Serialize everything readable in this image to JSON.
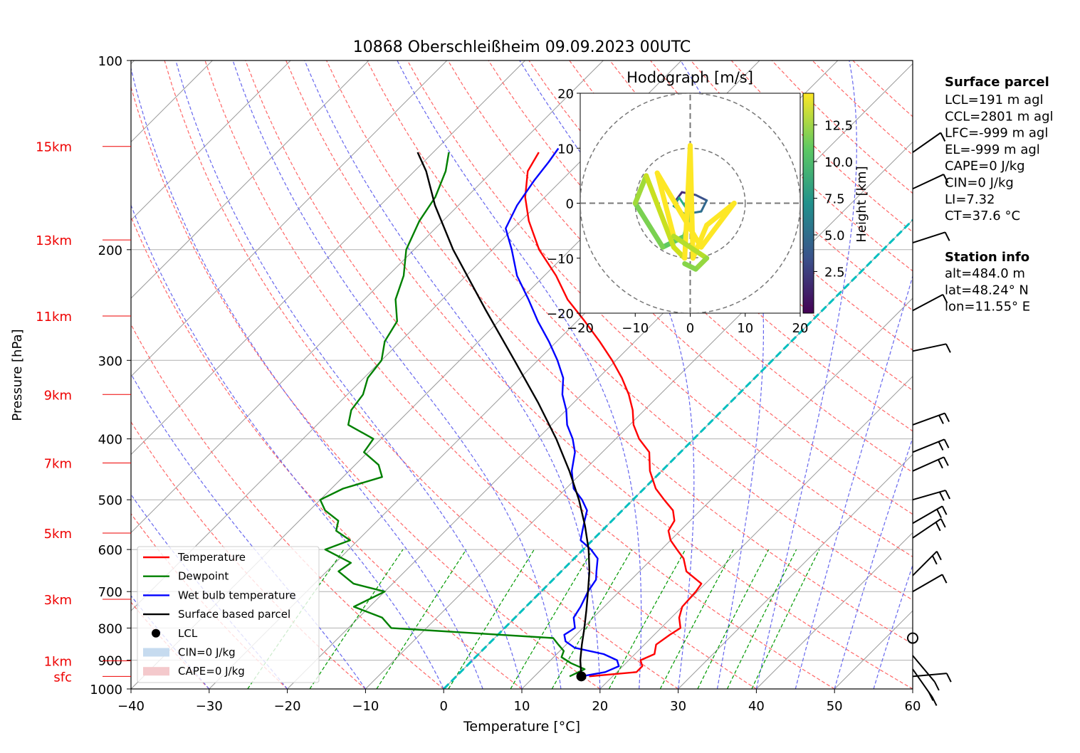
{
  "chart_data": {
    "type": "line",
    "title": "10868 Oberschleißheim 09.09.2023 00UTC",
    "xlabel": "Temperature [°C]",
    "ylabel": "Pressure [hPa]",
    "xlim": [
      -40,
      60
    ],
    "ylim": [
      1000,
      100
    ],
    "yscale": "log",
    "x_ticks": [
      "−40",
      "−30",
      "−20",
      "−10",
      "0",
      "10",
      "20",
      "30",
      "40",
      "50",
      "60"
    ],
    "p_ticks": [
      {
        "p": 100,
        "label": "100"
      },
      {
        "p": 200,
        "label": "200"
      },
      {
        "p": 300,
        "label": "300"
      },
      {
        "p": 400,
        "label": "400"
      },
      {
        "p": 500,
        "label": "500"
      },
      {
        "p": 600,
        "label": "600"
      },
      {
        "p": 700,
        "label": "700"
      },
      {
        "p": 800,
        "label": "800"
      },
      {
        "p": 900,
        "label": "900"
      },
      {
        "p": 1000,
        "label": "1000"
      }
    ],
    "height_labels": [
      {
        "p": 955,
        "label": "sfc"
      },
      {
        "p": 902,
        "label": "1km"
      },
      {
        "p": 720,
        "label": "3km"
      },
      {
        "p": 565,
        "label": "5km"
      },
      {
        "p": 437,
        "label": "7km"
      },
      {
        "p": 340,
        "label": "9km"
      },
      {
        "p": 255,
        "label": "11km"
      },
      {
        "p": 193,
        "label": "13km"
      },
      {
        "p": 137,
        "label": "15km"
      }
    ],
    "series": [
      {
        "name": "Temperature",
        "color": "#ff0000",
        "points": [
          [
            955,
            17.0
          ],
          [
            940,
            22.5
          ],
          [
            920,
            22.5
          ],
          [
            900,
            21.5
          ],
          [
            880,
            22.5
          ],
          [
            850,
            21.5
          ],
          [
            820,
            22.0
          ],
          [
            800,
            22.5
          ],
          [
            770,
            21.0
          ],
          [
            740,
            20.0
          ],
          [
            700,
            19.8
          ],
          [
            680,
            19.5
          ],
          [
            650,
            16.0
          ],
          [
            620,
            14.0
          ],
          [
            600,
            12.0
          ],
          [
            580,
            10.0
          ],
          [
            560,
            8.5
          ],
          [
            540,
            8.0
          ],
          [
            520,
            6.5
          ],
          [
            500,
            4.0
          ],
          [
            480,
            1.5
          ],
          [
            450,
            -1.5
          ],
          [
            420,
            -4.0
          ],
          [
            400,
            -7.0
          ],
          [
            380,
            -9.5
          ],
          [
            360,
            -11.5
          ],
          [
            340,
            -14.0
          ],
          [
            320,
            -17.0
          ],
          [
            300,
            -20.5
          ],
          [
            280,
            -24.5
          ],
          [
            260,
            -29.0
          ],
          [
            240,
            -34.0
          ],
          [
            220,
            -38.5
          ],
          [
            200,
            -44.0
          ],
          [
            180,
            -49.0
          ],
          [
            165,
            -52.5
          ],
          [
            150,
            -55.5
          ],
          [
            140,
            -56.5
          ]
        ]
      },
      {
        "name": "Dewpoint",
        "color": "#008000",
        "points": [
          [
            955,
            14.5
          ],
          [
            930,
            15.5
          ],
          [
            910,
            13.0
          ],
          [
            890,
            11.0
          ],
          [
            870,
            10.5
          ],
          [
            850,
            9.0
          ],
          [
            830,
            7.5
          ],
          [
            800,
            -14.5
          ],
          [
            770,
            -17.0
          ],
          [
            740,
            -22.0
          ],
          [
            700,
            -20.0
          ],
          [
            680,
            -25.0
          ],
          [
            650,
            -28.5
          ],
          [
            630,
            -28.0
          ],
          [
            600,
            -33.0
          ],
          [
            580,
            -31.0
          ],
          [
            560,
            -34.0
          ],
          [
            540,
            -35.0
          ],
          [
            520,
            -38.0
          ],
          [
            500,
            -40.0
          ],
          [
            480,
            -38.5
          ],
          [
            460,
            -35.0
          ],
          [
            440,
            -37.0
          ],
          [
            420,
            -40.5
          ],
          [
            400,
            -41.0
          ],
          [
            380,
            -46.0
          ],
          [
            360,
            -47.5
          ],
          [
            340,
            -48.0
          ],
          [
            320,
            -49.5
          ],
          [
            300,
            -50.0
          ],
          [
            280,
            -52.0
          ],
          [
            260,
            -53.0
          ],
          [
            240,
            -56.0
          ],
          [
            220,
            -58.0
          ],
          [
            200,
            -61.0
          ],
          [
            180,
            -63.0
          ],
          [
            165,
            -64.0
          ],
          [
            150,
            -66.0
          ],
          [
            140,
            -68.0
          ]
        ]
      },
      {
        "name": "Wet bulb temperature",
        "color": "#0000ff",
        "points": [
          [
            955,
            16.0
          ],
          [
            940,
            18.5
          ],
          [
            920,
            19.5
          ],
          [
            900,
            18.5
          ],
          [
            880,
            16.0
          ],
          [
            860,
            11.5
          ],
          [
            840,
            9.5
          ],
          [
            820,
            8.5
          ],
          [
            800,
            9.0
          ],
          [
            770,
            7.5
          ],
          [
            740,
            7.0
          ],
          [
            700,
            6.0
          ],
          [
            670,
            5.5
          ],
          [
            650,
            4.5
          ],
          [
            620,
            3.0
          ],
          [
            600,
            1.0
          ],
          [
            580,
            -1.5
          ],
          [
            560,
            -2.5
          ],
          [
            540,
            -3.5
          ],
          [
            520,
            -4.5
          ],
          [
            500,
            -6.5
          ],
          [
            480,
            -9.0
          ],
          [
            450,
            -11.5
          ],
          [
            420,
            -13.5
          ],
          [
            400,
            -15.5
          ],
          [
            380,
            -18.0
          ],
          [
            360,
            -20.0
          ],
          [
            340,
            -22.5
          ],
          [
            320,
            -24.5
          ],
          [
            300,
            -27.5
          ],
          [
            280,
            -31.0
          ],
          [
            260,
            -35.0
          ],
          [
            240,
            -39.0
          ],
          [
            220,
            -43.5
          ],
          [
            200,
            -47.5
          ],
          [
            185,
            -51.0
          ],
          [
            170,
            -52.5
          ],
          [
            155,
            -53.5
          ],
          [
            145,
            -54.0
          ],
          [
            138,
            -54.5
          ]
        ]
      },
      {
        "name": "Surface based parcel",
        "color": "#000000",
        "points": [
          [
            955,
            16.0
          ],
          [
            900,
            13.8
          ],
          [
            850,
            12.0
          ],
          [
            800,
            10.2
          ],
          [
            750,
            8.2
          ],
          [
            700,
            6.0
          ],
          [
            650,
            3.6
          ],
          [
            600,
            0.7
          ],
          [
            550,
            -2.8
          ],
          [
            500,
            -6.9
          ],
          [
            450,
            -11.8
          ],
          [
            400,
            -17.6
          ],
          [
            350,
            -24.6
          ],
          [
            300,
            -33.0
          ],
          [
            250,
            -43.0
          ],
          [
            200,
            -55.0
          ],
          [
            170,
            -63.0
          ],
          [
            150,
            -68.5
          ],
          [
            140,
            -72.0
          ]
        ]
      }
    ],
    "lcl": {
      "p": 955,
      "t": 16.0
    },
    "legend": {
      "placement": "lower-left",
      "entries": [
        {
          "label": "Temperature",
          "kind": "line",
          "color": "#ff0000"
        },
        {
          "label": "Dewpoint",
          "kind": "line",
          "color": "#008000"
        },
        {
          "label": "Wet bulb temperature",
          "kind": "line",
          "color": "#0000ff"
        },
        {
          "label": "Surface based parcel",
          "kind": "line",
          "color": "#000000"
        },
        {
          "label": "LCL",
          "kind": "dot",
          "color": "#000000"
        },
        {
          "label": "CIN=0 J/kg",
          "kind": "patch",
          "color": "#c6dbef"
        },
        {
          "label": "CAPE=0 J/kg",
          "kind": "patch",
          "color": "#f4c9cc"
        }
      ]
    },
    "hodograph": {
      "title": "Hodograph [m/s]",
      "xlim": [
        -20,
        20
      ],
      "ylim": [
        -20,
        20
      ],
      "x_ticks": [
        "−20",
        "−10",
        "0",
        "10",
        "20"
      ],
      "y_ticks": [
        "20",
        "10",
        "0",
        "−10",
        "−20"
      ],
      "colorbar_label": "Height [km]",
      "colorbar_ticks": [
        "2.5",
        "5.0",
        "7.5",
        "10.0",
        "12.5"
      ],
      "colormap": [
        "#440154",
        "#3b528b",
        "#21918c",
        "#5ec962",
        "#fde725"
      ]
    },
    "surface_parcel": {
      "title": "Surface parcel",
      "lines": [
        "LCL=191 m agl",
        "CCL=2801 m agl",
        "LFC=-999 m agl",
        "EL=-999 m agl",
        "CAPE=0 J/kg",
        "CIN=0 J/kg",
        "LI=7.32",
        "CT=37.6 °C"
      ]
    },
    "station_info": {
      "title": "Station info",
      "lines": [
        "alt=484.0 m",
        "lat=48.24° N",
        "lon=11.55° E"
      ]
    },
    "colors": {
      "height_labels": "#ff0000",
      "dry_adiabats": "#ff6666",
      "moist_adiabats": "#6666ee",
      "mixing_ratio": "#009900",
      "isotherms": "#999999",
      "freezing_line": "#00bfbf"
    }
  }
}
